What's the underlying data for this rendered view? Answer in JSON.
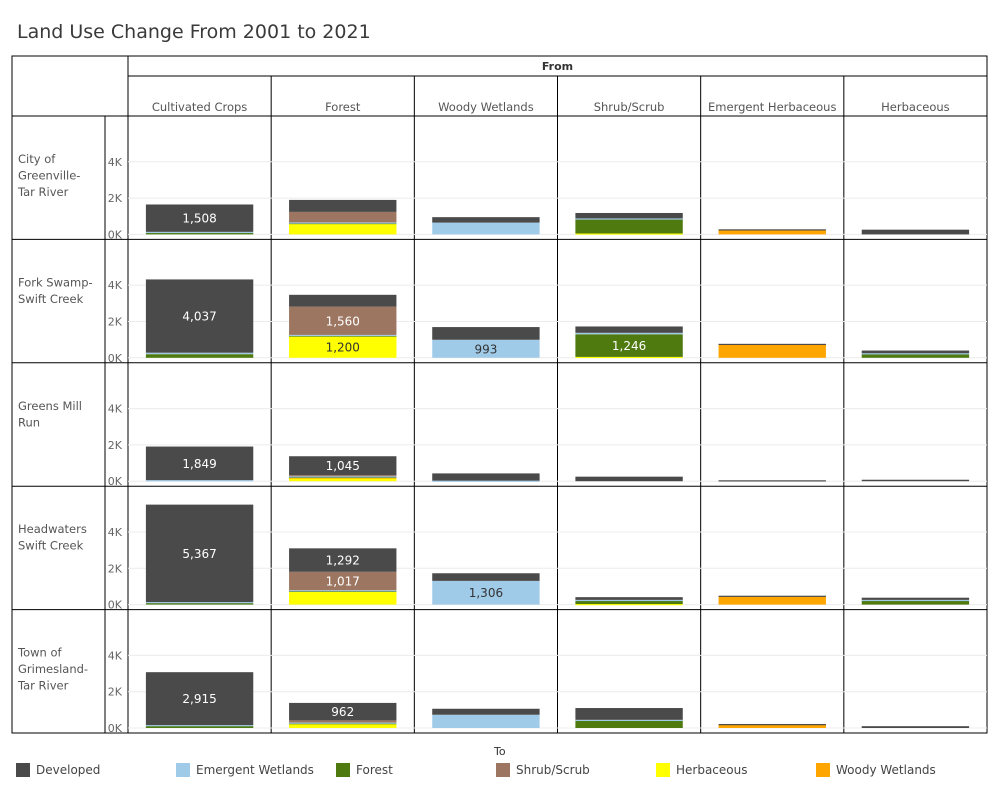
{
  "title": "Land Use Change From 2001 to 2021",
  "column_header": "From",
  "legend_title": "To",
  "colors": {
    "Developed": "#4a4a4a",
    "Emergent Wetlands": "#a0cbe8",
    "Forest": "#4e7a0f",
    "Shrub/Scrub": "#9c7660",
    "Herbaceous": "#ffff00",
    "Woody Wetlands": "#ffa500"
  },
  "legend": [
    {
      "label": "Developed",
      "color": "#4a4a4a"
    },
    {
      "label": "Emergent Wetlands",
      "color": "#a0cbe8"
    },
    {
      "label": "Forest",
      "color": "#4e7a0f"
    },
    {
      "label": "Shrub/Scrub",
      "color": "#9c7660"
    },
    {
      "label": "Herbaceous",
      "color": "#ffff00"
    },
    {
      "label": "Woody Wetlands",
      "color": "#ffa500"
    }
  ],
  "chart_data": {
    "type": "bar",
    "stacked": true,
    "columns": [
      "Cultivated Crops",
      "Forest",
      "Woody Wetlands",
      "Shrub/Scrub",
      "Emergent Herbaceous",
      "Herbaceous"
    ],
    "rows": [
      "City of Greenville-Tar River",
      "Fork Swamp-Swift Creek",
      "Greens Mill Run",
      "Headwaters Swift Creek",
      "Town of Grimesland-Tar River"
    ],
    "row_label_lines": [
      [
        "City of",
        "Greenville-",
        "Tar River"
      ],
      [
        "Fork Swamp-",
        "Swift Creek"
      ],
      [
        "Greens Mill",
        "Run"
      ],
      [
        "Headwaters",
        "Swift Creek"
      ],
      [
        "Town of",
        "Grimesland-",
        "Tar River"
      ]
    ],
    "yticks": [
      {
        "value": 0,
        "label": "0K"
      },
      {
        "value": 2000,
        "label": "2K"
      },
      {
        "value": 4000,
        "label": "4K"
      }
    ],
    "ylim": [
      0,
      5200
    ],
    "series_order": [
      "Herbaceous",
      "Woody Wetlands",
      "Forest",
      "Emergent Wetlands",
      "Shrub/Scrub",
      "Developed"
    ],
    "cells": [
      [
        {
          "Forest": 100,
          "Emergent Wetlands": 40,
          "Developed": 1508,
          "labels": {
            "Developed": "1,508"
          }
        },
        {
          "Herbaceous": 600,
          "Forest": 30,
          "Emergent Wetlands": 30,
          "Shrub/Scrub": 580,
          "Developed": 660
        },
        {
          "Emergent Wetlands": 650,
          "Developed": 300
        },
        {
          "Herbaceous": 50,
          "Forest": 800,
          "Emergent Wetlands": 30,
          "Developed": 300
        },
        {
          "Woody Wetlands": 230,
          "Developed": 50
        },
        {
          "Developed": 260
        }
      ],
      [
        {
          "Forest": 200,
          "Emergent Wetlands": 80,
          "Developed": 4037,
          "labels": {
            "Developed": "4,037"
          }
        },
        {
          "Herbaceous": 1200,
          "Forest": 30,
          "Emergent Wetlands": 30,
          "Shrub/Scrub": 1560,
          "Developed": 650,
          "labels": {
            "Herbaceous": "1,200",
            "Shrub/Scrub": "1,560"
          }
        },
        {
          "Emergent Wetlands": 993,
          "Developed": 700,
          "labels": {
            "Emergent Wetlands": "993"
          }
        },
        {
          "Herbaceous": 50,
          "Forest": 1246,
          "Emergent Wetlands": 80,
          "Developed": 350,
          "labels": {
            "Forest": "1,246"
          }
        },
        {
          "Woody Wetlands": 740,
          "Developed": 30
        },
        {
          "Forest": 220,
          "Emergent Wetlands": 30,
          "Developed": 150
        }
      ],
      [
        {
          "Emergent Wetlands": 60,
          "Developed": 1849,
          "labels": {
            "Developed": "1,849"
          }
        },
        {
          "Herbaceous": 180,
          "Woody Wetlands": 30,
          "Forest": 30,
          "Emergent Wetlands": 30,
          "Shrub/Scrub": 60,
          "Developed": 1045,
          "labels": {
            "Developed": "1,045"
          }
        },
        {
          "Emergent Wetlands": 30,
          "Developed": 400
        },
        {
          "Developed": 250
        },
        {
          "Developed": 50
        },
        {
          "Developed": 80
        }
      ],
      [
        {
          "Forest": 100,
          "Emergent Wetlands": 40,
          "Developed": 5367,
          "labels": {
            "Developed": "5,367"
          }
        },
        {
          "Herbaceous": 730,
          "Forest": 30,
          "Emergent Wetlands": 30,
          "Shrub/Scrub": 1017,
          "Developed": 1292,
          "labels": {
            "Shrub/Scrub": "1,017",
            "Developed": "1,292"
          }
        },
        {
          "Emergent Wetlands": 1306,
          "Developed": 420,
          "labels": {
            "Emergent Wetlands": "1,306"
          }
        },
        {
          "Herbaceous": 30,
          "Forest": 200,
          "Emergent Wetlands": 30,
          "Developed": 150
        },
        {
          "Woody Wetlands": 460,
          "Developed": 30
        },
        {
          "Forest": 230,
          "Emergent Wetlands": 30,
          "Developed": 120
        }
      ],
      [
        {
          "Forest": 120,
          "Emergent Wetlands": 40,
          "Developed": 2915,
          "labels": {
            "Developed": "2,915"
          }
        },
        {
          "Herbaceous": 240,
          "Forest": 30,
          "Emergent Wetlands": 30,
          "Shrub/Scrub": 120,
          "Developed": 962,
          "labels": {
            "Developed": "962"
          }
        },
        {
          "Emergent Wetlands": 730,
          "Developed": 330
        },
        {
          "Forest": 420,
          "Emergent Wetlands": 30,
          "Developed": 650
        },
        {
          "Woody Wetlands": 180,
          "Developed": 40
        },
        {
          "Developed": 100
        }
      ]
    ]
  }
}
